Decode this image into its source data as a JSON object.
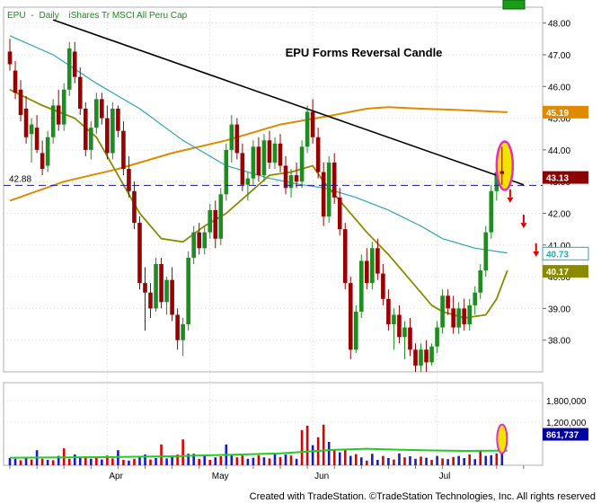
{
  "header": {
    "symbol": "EPU",
    "interval": "Daily",
    "description": "iShares Tr MSCI All Peru Cap"
  },
  "footer": {
    "credit": "Created with TradeStation. ©TradeStation Technologies, Inc. All rights reserved"
  },
  "colors": {
    "up_candle": "#1e8c1e",
    "down_candle": "#990000",
    "sma_fast": "#8b8b00",
    "sma_mid": "#2aa6b5",
    "sma_slow": "#e08a00",
    "trendline": "#000000",
    "support_line": "#1a1aa0",
    "volume_up": "#1a1acc",
    "volume_down": "#dd0000",
    "volume_avg": "#22cc22",
    "oval_outline": "#e030c0",
    "oval_fill": "#f2e400",
    "arrows": "#e00000"
  },
  "chart_data": {
    "type": "candlestick",
    "title": "EPU Forms Reversal Candle",
    "price_axis": {
      "ylim": [
        37.0,
        48.5
      ],
      "ticks": [
        "48.00",
        "47.00",
        "46.00",
        "45.00",
        "44.00",
        "43.00",
        "42.00",
        "41.00",
        "40.00",
        "39.00",
        "38.00"
      ]
    },
    "volume_axis": {
      "ylim": [
        0,
        2300000
      ],
      "ticks": [
        "1,800,000",
        "1,200,000"
      ]
    },
    "x_axis": {
      "labels": [
        "Apr",
        "May",
        "Jun",
        "Jul"
      ]
    },
    "horizontal_level": {
      "label": "42.88",
      "value": 42.88
    },
    "last_values": {
      "price": "43.13",
      "sma_slow": "45.19",
      "sma_mid": "40.73",
      "sma_fast": "40.17",
      "volume": "861,737"
    },
    "candles": [
      {
        "o": 47.1,
        "h": 47.5,
        "l": 46.5,
        "c": 46.7
      },
      {
        "o": 46.5,
        "h": 46.8,
        "l": 45.6,
        "c": 45.8
      },
      {
        "o": 45.9,
        "h": 46.2,
        "l": 44.9,
        "c": 45.1
      },
      {
        "o": 45.3,
        "h": 45.7,
        "l": 44.2,
        "c": 44.4
      },
      {
        "o": 44.5,
        "h": 45.0,
        "l": 43.6,
        "c": 44.8
      },
      {
        "o": 44.7,
        "h": 45.1,
        "l": 43.9,
        "c": 44.0
      },
      {
        "o": 43.9,
        "h": 44.3,
        "l": 43.2,
        "c": 43.4
      },
      {
        "o": 43.5,
        "h": 44.6,
        "l": 43.3,
        "c": 44.4
      },
      {
        "o": 44.4,
        "h": 45.6,
        "l": 44.2,
        "c": 45.4
      },
      {
        "o": 45.4,
        "h": 45.9,
        "l": 44.6,
        "c": 44.8
      },
      {
        "o": 44.8,
        "h": 46.1,
        "l": 44.6,
        "c": 45.9
      },
      {
        "o": 45.9,
        "h": 47.4,
        "l": 45.7,
        "c": 47.2
      },
      {
        "o": 47.1,
        "h": 47.4,
        "l": 46.1,
        "c": 46.3
      },
      {
        "o": 46.3,
        "h": 46.6,
        "l": 45.1,
        "c": 45.3
      },
      {
        "o": 45.3,
        "h": 45.5,
        "l": 43.8,
        "c": 44.0
      },
      {
        "o": 44.0,
        "h": 44.9,
        "l": 43.7,
        "c": 44.7
      },
      {
        "o": 44.7,
        "h": 45.8,
        "l": 44.5,
        "c": 45.6
      },
      {
        "o": 45.6,
        "h": 45.8,
        "l": 44.8,
        "c": 45.0
      },
      {
        "o": 45.0,
        "h": 45.4,
        "l": 43.7,
        "c": 43.9
      },
      {
        "o": 43.9,
        "h": 45.5,
        "l": 43.7,
        "c": 45.3
      },
      {
        "o": 45.3,
        "h": 45.4,
        "l": 44.4,
        "c": 44.6
      },
      {
        "o": 44.6,
        "h": 44.9,
        "l": 43.2,
        "c": 43.4
      },
      {
        "o": 43.4,
        "h": 43.8,
        "l": 42.5,
        "c": 42.7
      },
      {
        "o": 42.7,
        "h": 43.0,
        "l": 41.5,
        "c": 41.7
      },
      {
        "o": 41.7,
        "h": 41.9,
        "l": 39.6,
        "c": 39.8
      },
      {
        "o": 39.8,
        "h": 40.3,
        "l": 38.3,
        "c": 39.5
      },
      {
        "o": 39.5,
        "h": 39.8,
        "l": 38.7,
        "c": 39.0
      },
      {
        "o": 39.0,
        "h": 40.6,
        "l": 38.9,
        "c": 40.4
      },
      {
        "o": 40.4,
        "h": 40.6,
        "l": 39.0,
        "c": 39.2
      },
      {
        "o": 39.2,
        "h": 40.0,
        "l": 38.8,
        "c": 39.9
      },
      {
        "o": 39.9,
        "h": 40.3,
        "l": 38.6,
        "c": 38.8
      },
      {
        "o": 38.8,
        "h": 39.0,
        "l": 37.7,
        "c": 38.0
      },
      {
        "o": 38.0,
        "h": 38.7,
        "l": 37.5,
        "c": 38.5
      },
      {
        "o": 38.5,
        "h": 40.8,
        "l": 38.3,
        "c": 40.6
      },
      {
        "o": 40.6,
        "h": 41.6,
        "l": 40.4,
        "c": 41.4
      },
      {
        "o": 41.4,
        "h": 41.7,
        "l": 40.7,
        "c": 40.9
      },
      {
        "o": 40.9,
        "h": 41.6,
        "l": 40.7,
        "c": 41.4
      },
      {
        "o": 41.4,
        "h": 42.3,
        "l": 41.2,
        "c": 42.1
      },
      {
        "o": 42.1,
        "h": 42.4,
        "l": 40.9,
        "c": 41.2
      },
      {
        "o": 41.2,
        "h": 42.8,
        "l": 41.0,
        "c": 42.6
      },
      {
        "o": 42.6,
        "h": 44.2,
        "l": 42.4,
        "c": 44.0
      },
      {
        "o": 44.0,
        "h": 45.1,
        "l": 43.6,
        "c": 44.8
      },
      {
        "o": 44.8,
        "h": 45.0,
        "l": 43.7,
        "c": 43.9
      },
      {
        "o": 43.9,
        "h": 44.2,
        "l": 42.7,
        "c": 42.9
      },
      {
        "o": 42.9,
        "h": 43.3,
        "l": 42.4,
        "c": 43.1
      },
      {
        "o": 43.1,
        "h": 44.3,
        "l": 42.9,
        "c": 44.1
      },
      {
        "o": 44.1,
        "h": 44.4,
        "l": 43.0,
        "c": 43.2
      },
      {
        "o": 43.2,
        "h": 44.5,
        "l": 43.0,
        "c": 44.3
      },
      {
        "o": 44.3,
        "h": 44.6,
        "l": 43.4,
        "c": 43.6
      },
      {
        "o": 43.6,
        "h": 44.4,
        "l": 43.4,
        "c": 44.2
      },
      {
        "o": 44.2,
        "h": 44.5,
        "l": 43.3,
        "c": 43.5
      },
      {
        "o": 43.5,
        "h": 43.8,
        "l": 42.6,
        "c": 42.8
      },
      {
        "o": 42.8,
        "h": 43.4,
        "l": 42.5,
        "c": 43.2
      },
      {
        "o": 43.2,
        "h": 43.6,
        "l": 42.8,
        "c": 43.0
      },
      {
        "o": 43.0,
        "h": 44.3,
        "l": 42.8,
        "c": 44.1
      },
      {
        "o": 44.1,
        "h": 45.4,
        "l": 43.9,
        "c": 45.2
      },
      {
        "o": 45.2,
        "h": 45.6,
        "l": 44.2,
        "c": 44.4
      },
      {
        "o": 44.4,
        "h": 44.7,
        "l": 43.1,
        "c": 43.3
      },
      {
        "o": 43.3,
        "h": 43.6,
        "l": 41.6,
        "c": 41.9
      },
      {
        "o": 41.9,
        "h": 43.8,
        "l": 41.7,
        "c": 43.6
      },
      {
        "o": 43.6,
        "h": 43.9,
        "l": 42.3,
        "c": 42.5
      },
      {
        "o": 42.5,
        "h": 42.8,
        "l": 41.3,
        "c": 41.5
      },
      {
        "o": 41.5,
        "h": 41.7,
        "l": 39.6,
        "c": 39.8
      },
      {
        "o": 39.8,
        "h": 40.0,
        "l": 37.4,
        "c": 37.7
      },
      {
        "o": 37.7,
        "h": 39.1,
        "l": 37.6,
        "c": 38.9
      },
      {
        "o": 38.9,
        "h": 40.7,
        "l": 38.7,
        "c": 40.5
      },
      {
        "o": 40.5,
        "h": 40.9,
        "l": 39.6,
        "c": 39.8
      },
      {
        "o": 39.8,
        "h": 41.1,
        "l": 39.6,
        "c": 40.9
      },
      {
        "o": 40.9,
        "h": 41.2,
        "l": 39.9,
        "c": 40.1
      },
      {
        "o": 40.1,
        "h": 40.4,
        "l": 39.1,
        "c": 39.3
      },
      {
        "o": 39.3,
        "h": 39.6,
        "l": 38.3,
        "c": 38.5
      },
      {
        "o": 38.5,
        "h": 39.0,
        "l": 37.7,
        "c": 38.8
      },
      {
        "o": 38.8,
        "h": 39.1,
        "l": 37.9,
        "c": 38.1
      },
      {
        "o": 38.1,
        "h": 38.6,
        "l": 37.4,
        "c": 38.4
      },
      {
        "o": 38.4,
        "h": 38.7,
        "l": 37.5,
        "c": 37.7
      },
      {
        "o": 37.7,
        "h": 37.9,
        "l": 37.0,
        "c": 37.2
      },
      {
        "o": 37.2,
        "h": 37.9,
        "l": 37.0,
        "c": 37.7
      },
      {
        "o": 37.7,
        "h": 38.0,
        "l": 37.0,
        "c": 37.3
      },
      {
        "o": 37.3,
        "h": 37.9,
        "l": 37.2,
        "c": 37.8
      },
      {
        "o": 37.8,
        "h": 38.6,
        "l": 37.6,
        "c": 38.4
      },
      {
        "o": 38.4,
        "h": 39.6,
        "l": 38.2,
        "c": 39.4
      },
      {
        "o": 39.4,
        "h": 39.6,
        "l": 38.8,
        "c": 39.0
      },
      {
        "o": 39.0,
        "h": 39.4,
        "l": 38.2,
        "c": 38.4
      },
      {
        "o": 38.4,
        "h": 39.2,
        "l": 38.2,
        "c": 39.0
      },
      {
        "o": 39.0,
        "h": 39.3,
        "l": 38.3,
        "c": 38.5
      },
      {
        "o": 38.5,
        "h": 39.3,
        "l": 38.3,
        "c": 39.1
      },
      {
        "o": 39.1,
        "h": 39.7,
        "l": 38.8,
        "c": 39.5
      },
      {
        "o": 39.5,
        "h": 40.4,
        "l": 39.3,
        "c": 40.2
      },
      {
        "o": 40.2,
        "h": 41.6,
        "l": 40.0,
        "c": 41.4
      },
      {
        "o": 41.4,
        "h": 42.9,
        "l": 41.2,
        "c": 42.7
      },
      {
        "o": 42.7,
        "h": 43.4,
        "l": 42.4,
        "c": 43.3
      },
      {
        "o": 43.3,
        "h": 44.1,
        "l": 42.9,
        "c": 43.2
      }
    ],
    "sma_fast": [
      [
        0,
        45.9
      ],
      [
        6,
        45.4
      ],
      [
        12,
        45.0
      ],
      [
        16,
        44.4
      ],
      [
        20,
        43.2
      ],
      [
        24,
        42.0
      ],
      [
        28,
        41.2
      ],
      [
        32,
        41.1
      ],
      [
        36,
        41.6
      ],
      [
        40,
        42.0
      ],
      [
        44,
        42.6
      ],
      [
        48,
        43.2
      ],
      [
        52,
        43.3
      ],
      [
        56,
        43.5
      ],
      [
        58,
        43.0
      ],
      [
        62,
        42.2
      ],
      [
        66,
        41.4
      ],
      [
        70,
        40.7
      ],
      [
        74,
        39.9
      ],
      [
        78,
        39.1
      ],
      [
        80,
        38.9
      ],
      [
        84,
        38.7
      ],
      [
        88,
        38.8
      ],
      [
        90,
        39.3
      ],
      [
        92,
        40.2
      ]
    ],
    "sma_mid": [
      [
        0,
        47.6
      ],
      [
        8,
        47.0
      ],
      [
        16,
        46.1
      ],
      [
        24,
        45.3
      ],
      [
        32,
        44.3
      ],
      [
        40,
        43.5
      ],
      [
        48,
        43.1
      ],
      [
        54,
        42.9
      ],
      [
        58,
        42.8
      ],
      [
        64,
        42.5
      ],
      [
        70,
        42.1
      ],
      [
        76,
        41.6
      ],
      [
        80,
        41.2
      ],
      [
        86,
        40.9
      ],
      [
        92,
        40.75
      ]
    ],
    "sma_slow": [
      [
        0,
        42.4
      ],
      [
        10,
        43.0
      ],
      [
        20,
        43.4
      ],
      [
        30,
        43.9
      ],
      [
        40,
        44.3
      ],
      [
        50,
        44.8
      ],
      [
        60,
        45.1
      ],
      [
        66,
        45.3
      ],
      [
        70,
        45.35
      ],
      [
        76,
        45.3
      ],
      [
        84,
        45.25
      ],
      [
        92,
        45.19
      ]
    ],
    "trendline": [
      [
        8,
        48.1
      ],
      [
        95,
        42.9
      ]
    ],
    "volume": [
      [
        200000,
        1
      ],
      [
        180000,
        1
      ],
      [
        140000,
        0
      ],
      [
        230000,
        1
      ],
      [
        160000,
        0
      ],
      [
        420000,
        1
      ],
      [
        180000,
        0
      ],
      [
        150000,
        1
      ],
      [
        140000,
        0
      ],
      [
        260000,
        1
      ],
      [
        470000,
        0
      ],
      [
        180000,
        0
      ],
      [
        300000,
        1
      ],
      [
        200000,
        1
      ],
      [
        250000,
        0
      ],
      [
        180000,
        1
      ],
      [
        240000,
        0
      ],
      [
        160000,
        1
      ],
      [
        270000,
        0
      ],
      [
        190000,
        0
      ],
      [
        420000,
        1
      ],
      [
        150000,
        0
      ],
      [
        130000,
        1
      ],
      [
        180000,
        0
      ],
      [
        240000,
        1
      ],
      [
        300000,
        1
      ],
      [
        160000,
        0
      ],
      [
        200000,
        1
      ],
      [
        580000,
        0
      ],
      [
        190000,
        1
      ],
      [
        270000,
        1
      ],
      [
        300000,
        0
      ],
      [
        720000,
        0
      ],
      [
        320000,
        1
      ],
      [
        320000,
        1
      ],
      [
        180000,
        0
      ],
      [
        300000,
        1
      ],
      [
        150000,
        0
      ],
      [
        220000,
        1
      ],
      [
        250000,
        0
      ],
      [
        580000,
        1
      ],
      [
        300000,
        1
      ],
      [
        220000,
        0
      ],
      [
        270000,
        0
      ],
      [
        180000,
        1
      ],
      [
        210000,
        1
      ],
      [
        280000,
        0
      ],
      [
        220000,
        1
      ],
      [
        190000,
        0
      ],
      [
        330000,
        1
      ],
      [
        230000,
        0
      ],
      [
        300000,
        1
      ],
      [
        270000,
        0
      ],
      [
        180000,
        1
      ],
      [
        980000,
        0
      ],
      [
        1100000,
        0
      ],
      [
        560000,
        1
      ],
      [
        780000,
        0
      ],
      [
        1130000,
        0
      ],
      [
        650000,
        1
      ],
      [
        450000,
        0
      ],
      [
        360000,
        1
      ],
      [
        430000,
        0
      ],
      [
        260000,
        1
      ],
      [
        310000,
        0
      ],
      [
        220000,
        1
      ],
      [
        130000,
        0
      ],
      [
        320000,
        1
      ],
      [
        150000,
        1
      ],
      [
        260000,
        0
      ],
      [
        200000,
        1
      ],
      [
        160000,
        0
      ],
      [
        330000,
        1
      ],
      [
        220000,
        0
      ],
      [
        250000,
        1
      ],
      [
        180000,
        1
      ],
      [
        240000,
        0
      ],
      [
        210000,
        1
      ],
      [
        150000,
        0
      ],
      [
        260000,
        1
      ],
      [
        190000,
        0
      ],
      [
        170000,
        1
      ],
      [
        230000,
        0
      ],
      [
        260000,
        1
      ],
      [
        200000,
        1
      ],
      [
        300000,
        0
      ],
      [
        170000,
        1
      ],
      [
        420000,
        0
      ],
      [
        260000,
        1
      ],
      [
        280000,
        1
      ],
      [
        330000,
        0
      ],
      [
        860000,
        1
      ]
    ],
    "volume_avg": [
      [
        0,
        210000
      ],
      [
        10,
        220000
      ],
      [
        20,
        230000
      ],
      [
        30,
        250000
      ],
      [
        40,
        290000
      ],
      [
        50,
        330000
      ],
      [
        56,
        390000
      ],
      [
        60,
        430000
      ],
      [
        66,
        460000
      ],
      [
        70,
        440000
      ],
      [
        76,
        420000
      ],
      [
        84,
        400000
      ],
      [
        92,
        410000
      ]
    ],
    "annotations": [
      {
        "type": "oval",
        "index": 91.5
      },
      {
        "type": "arrow_down",
        "index": 92.5,
        "price": 42.5
      },
      {
        "type": "arrow_down",
        "index": 95.0,
        "price": 41.7
      },
      {
        "type": "arrow_down",
        "index": 97.3,
        "price": 40.8
      }
    ]
  }
}
